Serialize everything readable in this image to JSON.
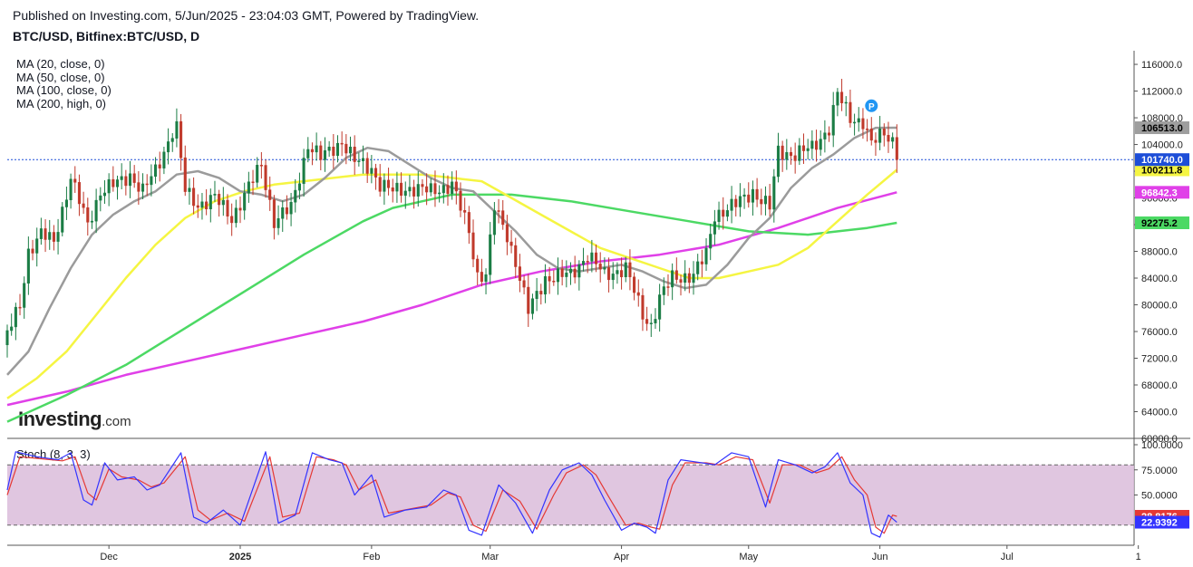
{
  "header": {
    "published": "Published on Investing.com, 5/Jun/2025 - 23:04:03 GMT, Powered by TradingView.",
    "symbol": "BTC/USD, Bitfinex:BTC/USD, D"
  },
  "legend": {
    "ma": [
      "MA (20, close, 0)",
      "MA (50, close, 0)",
      "MA (100, close, 0)",
      "MA (200, high, 0)"
    ],
    "stoch": "Stoch (8, 3, 3)"
  },
  "logo": {
    "brand": "Investing",
    "suffix": ".com"
  },
  "colors": {
    "up": "#26a69a",
    "up_fill": "#1b7d45",
    "down": "#c0392b",
    "ma20": "#9b9b9b",
    "ma50": "#f5f542",
    "ma100": "#4cd964",
    "ma200": "#e040e8",
    "stoch_k": "#3333ff",
    "stoch_d": "#e53935",
    "stoch_band": "#dbbcdb",
    "last_price": "#1d4ed8"
  },
  "chart_data": {
    "type": "candlestick",
    "price_axis": {
      "ylim": [
        60000,
        117500
      ],
      "ticks": [
        60000,
        64000,
        68000,
        72000,
        76000,
        80000,
        84000,
        88000,
        92000,
        96000,
        100000,
        104000,
        108000,
        112000,
        116000
      ],
      "tick_labels": [
        "60000.0",
        "64000.0",
        "68000.0",
        "72000.0",
        "76000.0",
        "80000.0",
        "84000.0",
        "88000.0",
        "92000.0",
        "96000.0",
        "100000.0",
        "104000.0",
        "108000.0",
        "112000.0",
        "116000.0"
      ]
    },
    "x_axis": {
      "range": [
        "2024-11-07",
        "2025-07-31"
      ],
      "ticks": [
        "2024-12-01",
        "2025-01-01",
        "2025-02-01",
        "2025-03-01",
        "2025-04-01",
        "2025-05-01",
        "2025-06-01",
        "2025-07-01",
        "2025-08-01"
      ],
      "tick_labels": [
        "Dec",
        "2025",
        "Feb",
        "Mar",
        "Apr",
        "May",
        "Jun",
        "Jul",
        "1"
      ]
    },
    "last_price": {
      "value": 101740.0,
      "label": "101740.0"
    },
    "ma_labels": [
      {
        "name": "MA (20, close, 0)",
        "value": 106513.0,
        "label": "106513.0"
      },
      {
        "name": "MA (50, close, 0)",
        "value": 100211.8,
        "label": "100211.8"
      },
      {
        "name": "MA (200, high, 0)",
        "value": 96842.3,
        "label": "96842.3"
      },
      {
        "name": "MA (100, close, 0)",
        "value": 92275.2,
        "label": "92275.2"
      }
    ],
    "close_path": [
      [
        "2024-11-07",
        75500
      ],
      [
        "2024-11-10",
        80000
      ],
      [
        "2024-11-12",
        88000
      ],
      [
        "2024-11-15",
        90500
      ],
      [
        "2024-11-18",
        89500
      ],
      [
        "2024-11-22",
        99000
      ],
      [
        "2024-11-26",
        92000
      ],
      [
        "2024-11-29",
        97000
      ],
      [
        "2024-12-04",
        98500
      ],
      [
        "2024-12-06",
        99500
      ],
      [
        "2024-12-09",
        97000
      ],
      [
        "2024-12-12",
        100000
      ],
      [
        "2024-12-16",
        106000
      ],
      [
        "2024-12-17",
        106500
      ],
      [
        "2024-12-19",
        97000
      ],
      [
        "2024-12-22",
        95000
      ],
      [
        "2024-12-26",
        96000
      ],
      [
        "2024-12-30",
        93000
      ],
      [
        "2025-01-06",
        101000
      ],
      [
        "2025-01-09",
        92500
      ],
      [
        "2025-01-13",
        94500
      ],
      [
        "2025-01-17",
        104000
      ],
      [
        "2025-01-20",
        102000
      ],
      [
        "2025-01-22",
        103000
      ],
      [
        "2025-01-25",
        104500
      ],
      [
        "2025-01-28",
        101500
      ],
      [
        "2025-02-01",
        100500
      ],
      [
        "2025-02-03",
        98000
      ],
      [
        "2025-02-06",
        97000
      ],
      [
        "2025-02-10",
        97500
      ],
      [
        "2025-02-15",
        97000
      ],
      [
        "2025-02-20",
        98000
      ],
      [
        "2025-02-24",
        91000
      ],
      [
        "2025-02-26",
        84500
      ],
      [
        "2025-02-28",
        84500
      ],
      [
        "2025-03-02",
        94500
      ],
      [
        "2025-03-05",
        90500
      ],
      [
        "2025-03-07",
        86500
      ],
      [
        "2025-03-10",
        79000
      ],
      [
        "2025-03-14",
        84000
      ],
      [
        "2025-03-20",
        84500
      ],
      [
        "2025-03-24",
        87500
      ],
      [
        "2025-03-28",
        84500
      ],
      [
        "2025-04-02",
        85500
      ],
      [
        "2025-04-06",
        78500
      ],
      [
        "2025-04-08",
        77000
      ],
      [
        "2025-04-10",
        81000
      ],
      [
        "2025-04-13",
        84000
      ],
      [
        "2025-04-18",
        84500
      ],
      [
        "2025-04-21",
        87500
      ],
      [
        "2025-04-23",
        93500
      ],
      [
        "2025-04-28",
        95000
      ],
      [
        "2025-05-02",
        97000
      ],
      [
        "2025-05-06",
        94500
      ],
      [
        "2025-05-08",
        103000
      ],
      [
        "2025-05-12",
        102500
      ],
      [
        "2025-05-16",
        103500
      ],
      [
        "2025-05-20",
        106500
      ],
      [
        "2025-05-22",
        111500
      ],
      [
        "2025-05-25",
        108000
      ],
      [
        "2025-05-28",
        107500
      ],
      [
        "2025-05-30",
        104000
      ],
      [
        "2025-06-02",
        105800
      ],
      [
        "2025-06-04",
        104700
      ],
      [
        "2025-06-05",
        101740
      ]
    ],
    "ma20": [
      [
        "2024-11-07",
        69500
      ],
      [
        "2024-11-12",
        73000
      ],
      [
        "2024-11-17",
        79500
      ],
      [
        "2024-11-22",
        85500
      ],
      [
        "2024-11-27",
        90500
      ],
      [
        "2024-12-02",
        93500
      ],
      [
        "2024-12-07",
        95500
      ],
      [
        "2024-12-12",
        97000
      ],
      [
        "2024-12-17",
        99500
      ],
      [
        "2024-12-22",
        100000
      ],
      [
        "2024-12-27",
        99000
      ],
      [
        "2025-01-01",
        97000
      ],
      [
        "2025-01-06",
        96500
      ],
      [
        "2025-01-11",
        95500
      ],
      [
        "2025-01-16",
        96500
      ],
      [
        "2025-01-21",
        99000
      ],
      [
        "2025-01-26",
        102000
      ],
      [
        "2025-01-31",
        103500
      ],
      [
        "2025-02-05",
        103000
      ],
      [
        "2025-02-10",
        101000
      ],
      [
        "2025-02-15",
        99000
      ],
      [
        "2025-02-20",
        97500
      ],
      [
        "2025-02-25",
        97000
      ],
      [
        "2025-03-02",
        94000
      ],
      [
        "2025-03-07",
        91000
      ],
      [
        "2025-03-12",
        87500
      ],
      [
        "2025-03-17",
        85500
      ],
      [
        "2025-03-22",
        85000
      ],
      [
        "2025-03-27",
        85500
      ],
      [
        "2025-04-01",
        86000
      ],
      [
        "2025-04-06",
        85000
      ],
      [
        "2025-04-11",
        83500
      ],
      [
        "2025-04-16",
        82500
      ],
      [
        "2025-04-21",
        83000
      ],
      [
        "2025-04-26",
        86000
      ],
      [
        "2025-05-01",
        90000
      ],
      [
        "2025-05-06",
        93000
      ],
      [
        "2025-05-11",
        97500
      ],
      [
        "2025-05-16",
        100500
      ],
      [
        "2025-05-21",
        102500
      ],
      [
        "2025-05-26",
        105000
      ],
      [
        "2025-05-31",
        106500
      ],
      [
        "2025-06-05",
        106513
      ]
    ],
    "ma50": [
      [
        "2024-11-07",
        66000
      ],
      [
        "2024-11-14",
        69000
      ],
      [
        "2024-11-21",
        73000
      ],
      [
        "2024-11-28",
        78500
      ],
      [
        "2024-12-05",
        84000
      ],
      [
        "2024-12-12",
        89000
      ],
      [
        "2024-12-19",
        93000
      ],
      [
        "2024-12-26",
        95500
      ],
      [
        "2025-01-02",
        97000
      ],
      [
        "2025-01-09",
        98000
      ],
      [
        "2025-01-16",
        98500
      ],
      [
        "2025-01-23",
        99000
      ],
      [
        "2025-01-30",
        99500
      ],
      [
        "2025-02-06",
        99500
      ],
      [
        "2025-02-13",
        99500
      ],
      [
        "2025-02-20",
        99000
      ],
      [
        "2025-02-27",
        98500
      ],
      [
        "2025-03-06",
        96000
      ],
      [
        "2025-03-13",
        93500
      ],
      [
        "2025-03-20",
        91000
      ],
      [
        "2025-03-27",
        88500
      ],
      [
        "2025-04-03",
        87000
      ],
      [
        "2025-04-10",
        85500
      ],
      [
        "2025-04-17",
        84000
      ],
      [
        "2025-04-24",
        84000
      ],
      [
        "2025-05-01",
        85000
      ],
      [
        "2025-05-08",
        86000
      ],
      [
        "2025-05-15",
        88500
      ],
      [
        "2025-05-22",
        92500
      ],
      [
        "2025-05-29",
        96500
      ],
      [
        "2025-06-05",
        100212
      ]
    ],
    "ma100": [
      [
        "2024-11-07",
        62500
      ],
      [
        "2024-11-21",
        66500
      ],
      [
        "2024-12-05",
        71000
      ],
      [
        "2024-12-19",
        76500
      ],
      [
        "2025-01-02",
        82000
      ],
      [
        "2025-01-16",
        87500
      ],
      [
        "2025-01-30",
        92500
      ],
      [
        "2025-02-06",
        94500
      ],
      [
        "2025-02-13",
        95500
      ],
      [
        "2025-02-20",
        96500
      ],
      [
        "2025-03-06",
        96500
      ],
      [
        "2025-03-20",
        95500
      ],
      [
        "2025-04-03",
        94000
      ],
      [
        "2025-04-17",
        92500
      ],
      [
        "2025-05-01",
        91000
      ],
      [
        "2025-05-15",
        90500
      ],
      [
        "2025-05-29",
        91500
      ],
      [
        "2025-06-05",
        92275
      ]
    ],
    "ma200": [
      [
        "2024-11-07",
        65000
      ],
      [
        "2024-11-21",
        67000
      ],
      [
        "2024-12-05",
        69500
      ],
      [
        "2024-12-19",
        71500
      ],
      [
        "2025-01-02",
        73500
      ],
      [
        "2025-01-16",
        75500
      ],
      [
        "2025-01-30",
        77500
      ],
      [
        "2025-02-13",
        80000
      ],
      [
        "2025-02-27",
        83000
      ],
      [
        "2025-03-13",
        85000
      ],
      [
        "2025-03-27",
        86500
      ],
      [
        "2025-04-10",
        87500
      ],
      [
        "2025-04-24",
        89000
      ],
      [
        "2025-05-08",
        91500
      ],
      [
        "2025-05-22",
        94500
      ],
      [
        "2025-06-05",
        96842
      ]
    ],
    "stoch": {
      "ylim": [
        0,
        100
      ],
      "ticks": [
        50,
        75,
        100
      ],
      "tick_labels": [
        "50.0000",
        "75.0000",
        "100.0000"
      ],
      "band": [
        20,
        80
      ],
      "k_last": {
        "value": 22.9392,
        "label": "22.9392"
      },
      "d_last": {
        "value": 28.8176,
        "label": "28.8176"
      },
      "k_path": [
        [
          "2024-11-07",
          55
        ],
        [
          "2024-11-09",
          93
        ],
        [
          "2024-11-14",
          88
        ],
        [
          "2024-11-19",
          85
        ],
        [
          "2024-11-22",
          92
        ],
        [
          "2024-11-25",
          45
        ],
        [
          "2024-11-27",
          40
        ],
        [
          "2024-11-30",
          82
        ],
        [
          "2024-12-03",
          65
        ],
        [
          "2024-12-07",
          68
        ],
        [
          "2024-12-10",
          55
        ],
        [
          "2024-12-13",
          60
        ],
        [
          "2024-12-18",
          92
        ],
        [
          "2024-12-21",
          28
        ],
        [
          "2024-12-24",
          22
        ],
        [
          "2024-12-28",
          35
        ],
        [
          "2025-01-01",
          20
        ],
        [
          "2025-01-07",
          93
        ],
        [
          "2025-01-10",
          22
        ],
        [
          "2025-01-14",
          30
        ],
        [
          "2025-01-18",
          92
        ],
        [
          "2025-01-22",
          85
        ],
        [
          "2025-01-25",
          82
        ],
        [
          "2025-01-28",
          50
        ],
        [
          "2025-02-01",
          70
        ],
        [
          "2025-02-04",
          28
        ],
        [
          "2025-02-09",
          35
        ],
        [
          "2025-02-14",
          38
        ],
        [
          "2025-02-18",
          55
        ],
        [
          "2025-02-21",
          50
        ],
        [
          "2025-02-24",
          15
        ],
        [
          "2025-02-27",
          10
        ],
        [
          "2025-03-03",
          60
        ],
        [
          "2025-03-07",
          42
        ],
        [
          "2025-03-11",
          12
        ],
        [
          "2025-03-15",
          55
        ],
        [
          "2025-03-18",
          75
        ],
        [
          "2025-03-22",
          82
        ],
        [
          "2025-03-25",
          70
        ],
        [
          "2025-03-28",
          45
        ],
        [
          "2025-04-01",
          15
        ],
        [
          "2025-04-04",
          22
        ],
        [
          "2025-04-07",
          18
        ],
        [
          "2025-04-09",
          12
        ],
        [
          "2025-04-12",
          65
        ],
        [
          "2025-04-15",
          85
        ],
        [
          "2025-04-20",
          82
        ],
        [
          "2025-04-23",
          80
        ],
        [
          "2025-04-27",
          92
        ],
        [
          "2025-05-01",
          88
        ],
        [
          "2025-05-05",
          38
        ],
        [
          "2025-05-08",
          85
        ],
        [
          "2025-05-12",
          80
        ],
        [
          "2025-05-16",
          72
        ],
        [
          "2025-05-19",
          78
        ],
        [
          "2025-05-22",
          92
        ],
        [
          "2025-05-25",
          62
        ],
        [
          "2025-05-28",
          50
        ],
        [
          "2025-05-30",
          12
        ],
        [
          "2025-06-01",
          8
        ],
        [
          "2025-06-03",
          30
        ],
        [
          "2025-06-05",
          22.9
        ]
      ],
      "d_path": [
        [
          "2024-11-07",
          50
        ],
        [
          "2024-11-10",
          88
        ],
        [
          "2024-11-15",
          86
        ],
        [
          "2024-11-20",
          84
        ],
        [
          "2024-11-23",
          88
        ],
        [
          "2024-11-26",
          52
        ],
        [
          "2024-11-28",
          45
        ],
        [
          "2024-12-01",
          76
        ],
        [
          "2024-12-04",
          68
        ],
        [
          "2024-12-08",
          65
        ],
        [
          "2024-12-11",
          58
        ],
        [
          "2024-12-14",
          62
        ],
        [
          "2024-12-19",
          88
        ],
        [
          "2024-12-22",
          35
        ],
        [
          "2024-12-25",
          25
        ],
        [
          "2024-12-29",
          32
        ],
        [
          "2025-01-02",
          24
        ],
        [
          "2025-01-08",
          88
        ],
        [
          "2025-01-11",
          28
        ],
        [
          "2025-01-15",
          32
        ],
        [
          "2025-01-19",
          88
        ],
        [
          "2025-01-23",
          85
        ],
        [
          "2025-01-26",
          80
        ],
        [
          "2025-01-29",
          55
        ],
        [
          "2025-02-02",
          65
        ],
        [
          "2025-02-05",
          32
        ],
        [
          "2025-02-10",
          36
        ],
        [
          "2025-02-15",
          40
        ],
        [
          "2025-02-19",
          52
        ],
        [
          "2025-02-22",
          48
        ],
        [
          "2025-02-25",
          20
        ],
        [
          "2025-02-28",
          14
        ],
        [
          "2025-03-04",
          55
        ],
        [
          "2025-03-08",
          44
        ],
        [
          "2025-03-12",
          16
        ],
        [
          "2025-03-16",
          50
        ],
        [
          "2025-03-19",
          72
        ],
        [
          "2025-03-23",
          80
        ],
        [
          "2025-03-26",
          70
        ],
        [
          "2025-03-29",
          48
        ],
        [
          "2025-04-02",
          20
        ],
        [
          "2025-04-05",
          22
        ],
        [
          "2025-04-08",
          18
        ],
        [
          "2025-04-10",
          16
        ],
        [
          "2025-04-13",
          60
        ],
        [
          "2025-04-16",
          82
        ],
        [
          "2025-04-21",
          82
        ],
        [
          "2025-04-24",
          80
        ],
        [
          "2025-04-28",
          88
        ],
        [
          "2025-05-02",
          85
        ],
        [
          "2025-05-06",
          42
        ],
        [
          "2025-05-09",
          80
        ],
        [
          "2025-05-13",
          80
        ],
        [
          "2025-05-17",
          72
        ],
        [
          "2025-05-20",
          76
        ],
        [
          "2025-05-23",
          88
        ],
        [
          "2025-05-26",
          65
        ],
        [
          "2025-05-29",
          50
        ],
        [
          "2025-05-31",
          18
        ],
        [
          "2025-06-02",
          12
        ],
        [
          "2025-06-04",
          30
        ],
        [
          "2025-06-05",
          28.8
        ]
      ]
    },
    "marker": {
      "date": "2025-05-30",
      "value": 109800,
      "label": "P"
    }
  }
}
